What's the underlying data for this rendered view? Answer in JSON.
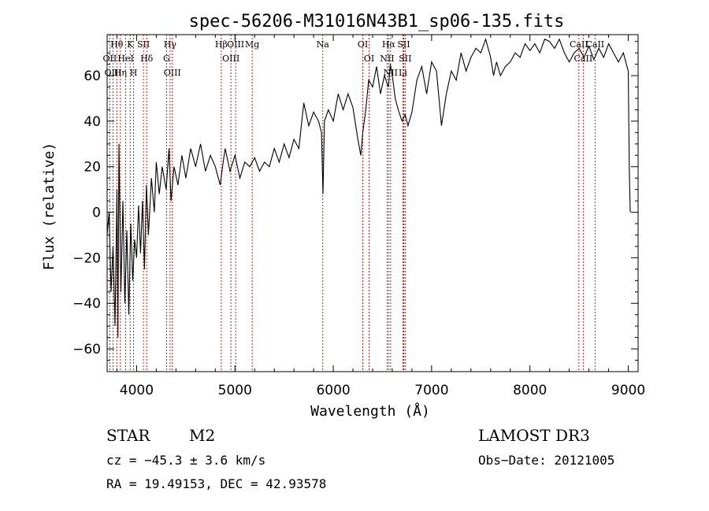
{
  "chart_data": {
    "type": "line",
    "title": "spec-56206-M31016N43B1_sp06-135.fits",
    "xlabel": "Wavelength (Å)",
    "ylabel": "Flux (relative)",
    "xlim": [
      3700,
      9100
    ],
    "ylim": [
      -70,
      78
    ],
    "xticks": [
      4000,
      5000,
      6000,
      7000,
      8000,
      9000
    ],
    "yticks": [
      -60,
      -40,
      -20,
      0,
      20,
      40,
      60
    ],
    "grid": false,
    "series": [
      {
        "name": "flux",
        "points": [
          [
            3700,
            -10
          ],
          [
            3720,
            0
          ],
          [
            3740,
            -35
          ],
          [
            3760,
            -15
          ],
          [
            3780,
            -50
          ],
          [
            3800,
            10
          ],
          [
            3810,
            -55
          ],
          [
            3820,
            30
          ],
          [
            3840,
            -35
          ],
          [
            3860,
            5
          ],
          [
            3880,
            -40
          ],
          [
            3900,
            -8
          ],
          [
            3920,
            -45
          ],
          [
            3940,
            -5
          ],
          [
            3960,
            -30
          ],
          [
            3980,
            -12
          ],
          [
            4000,
            -20
          ],
          [
            4020,
            3
          ],
          [
            4040,
            -18
          ],
          [
            4060,
            5
          ],
          [
            4080,
            -25
          ],
          [
            4100,
            12
          ],
          [
            4120,
            -10
          ],
          [
            4150,
            15
          ],
          [
            4180,
            0
          ],
          [
            4200,
            22
          ],
          [
            4230,
            8
          ],
          [
            4260,
            20
          ],
          [
            4300,
            10
          ],
          [
            4330,
            28
          ],
          [
            4350,
            5
          ],
          [
            4380,
            20
          ],
          [
            4420,
            12
          ],
          [
            4460,
            25
          ],
          [
            4500,
            15
          ],
          [
            4550,
            28
          ],
          [
            4600,
            20
          ],
          [
            4650,
            30
          ],
          [
            4700,
            18
          ],
          [
            4750,
            25
          ],
          [
            4800,
            20
          ],
          [
            4850,
            12
          ],
          [
            4880,
            22
          ],
          [
            4900,
            28
          ],
          [
            4950,
            18
          ],
          [
            5000,
            25
          ],
          [
            5050,
            15
          ],
          [
            5100,
            22
          ],
          [
            5150,
            20
          ],
          [
            5200,
            24
          ],
          [
            5250,
            18
          ],
          [
            5300,
            22
          ],
          [
            5350,
            20
          ],
          [
            5400,
            28
          ],
          [
            5450,
            22
          ],
          [
            5500,
            30
          ],
          [
            5550,
            24
          ],
          [
            5600,
            32
          ],
          [
            5650,
            28
          ],
          [
            5700,
            48
          ],
          [
            5750,
            38
          ],
          [
            5800,
            44
          ],
          [
            5850,
            40
          ],
          [
            5880,
            35
          ],
          [
            5895,
            8
          ],
          [
            5910,
            40
          ],
          [
            5950,
            45
          ],
          [
            6000,
            40
          ],
          [
            6050,
            52
          ],
          [
            6100,
            45
          ],
          [
            6150,
            52
          ],
          [
            6200,
            46
          ],
          [
            6250,
            32
          ],
          [
            6280,
            25
          ],
          [
            6300,
            35
          ],
          [
            6330,
            45
          ],
          [
            6360,
            58
          ],
          [
            6400,
            55
          ],
          [
            6440,
            64
          ],
          [
            6480,
            52
          ],
          [
            6520,
            60
          ],
          [
            6560,
            55
          ],
          [
            6580,
            65
          ],
          [
            6600,
            60
          ],
          [
            6630,
            50
          ],
          [
            6660,
            45
          ],
          [
            6700,
            40
          ],
          [
            6730,
            43
          ],
          [
            6760,
            38
          ],
          [
            6800,
            44
          ],
          [
            6850,
            58
          ],
          [
            6900,
            64
          ],
          [
            6950,
            52
          ],
          [
            7000,
            66
          ],
          [
            7050,
            62
          ],
          [
            7100,
            38
          ],
          [
            7150,
            52
          ],
          [
            7200,
            62
          ],
          [
            7250,
            58
          ],
          [
            7300,
            70
          ],
          [
            7350,
            62
          ],
          [
            7400,
            68
          ],
          [
            7450,
            72
          ],
          [
            7500,
            70
          ],
          [
            7550,
            76
          ],
          [
            7600,
            68
          ],
          [
            7630,
            60
          ],
          [
            7660,
            66
          ],
          [
            7700,
            60
          ],
          [
            7750,
            64
          ],
          [
            7800,
            66
          ],
          [
            7850,
            70
          ],
          [
            7900,
            68
          ],
          [
            7950,
            74
          ],
          [
            8000,
            71
          ],
          [
            8050,
            74
          ],
          [
            8100,
            70
          ],
          [
            8150,
            76
          ],
          [
            8200,
            75
          ],
          [
            8250,
            72
          ],
          [
            8300,
            76
          ],
          [
            8350,
            70
          ],
          [
            8400,
            66
          ],
          [
            8450,
            70
          ],
          [
            8500,
            72
          ],
          [
            8550,
            68
          ],
          [
            8600,
            73
          ],
          [
            8650,
            67
          ],
          [
            8700,
            72
          ],
          [
            8750,
            68
          ],
          [
            8800,
            74
          ],
          [
            8850,
            70
          ],
          [
            8900,
            66
          ],
          [
            8950,
            70
          ],
          [
            9000,
            62
          ],
          [
            9010,
            20
          ],
          [
            9020,
            0
          ]
        ]
      }
    ],
    "lines": [
      {
        "name": "Hθ",
        "wave": 3798
      },
      {
        "name": "OII",
        "wave": 3727
      },
      {
        "name": "OIII",
        "wave": 3760
      },
      {
        "name": "Hη",
        "wave": 3835
      },
      {
        "name": "K",
        "wave": 3934
      },
      {
        "name": "HeI",
        "wave": 3889
      },
      {
        "name": "H",
        "wave": 3969
      },
      {
        "name": "SII",
        "wave": 4069
      },
      {
        "name": "Hδ",
        "wave": 4102
      },
      {
        "name": "Hγ",
        "wave": 4340
      },
      {
        "name": "G",
        "wave": 4304
      },
      {
        "name": "OIII",
        "wave": 4363
      },
      {
        "name": "Hβ",
        "wave": 4861
      },
      {
        "name": "OIII",
        "wave": 4959
      },
      {
        "name": "OIII",
        "wave": 5007
      },
      {
        "name": "Mg",
        "wave": 5175
      },
      {
        "name": "Na",
        "wave": 5893
      },
      {
        "name": "OI",
        "wave": 6300
      },
      {
        "name": "OI",
        "wave": 6364
      },
      {
        "name": "Hα",
        "wave": 6563
      },
      {
        "name": "NII",
        "wave": 6548
      },
      {
        "name": "NII",
        "wave": 6583
      },
      {
        "name": "SII",
        "wave": 6716
      },
      {
        "name": "SII",
        "wave": 6731
      },
      {
        "name": "Li",
        "wave": 6708
      },
      {
        "name": "CaII",
        "wave": 8498
      },
      {
        "name": "CaII",
        "wave": 8542
      },
      {
        "name": "CaII",
        "wave": 8662
      }
    ]
  },
  "info": {
    "class_label": "STAR",
    "subclass": "M2",
    "survey": "LAMOST DR3",
    "cz": "cz = −45.3 ± 3.6 km/s",
    "obsdate": "Obs−Date: 20121005",
    "coords": "RA =  19.49153, DEC =  42.93578"
  },
  "colors": {
    "line": "#000000",
    "marker": "#cc0000",
    "axis": "#000000"
  }
}
